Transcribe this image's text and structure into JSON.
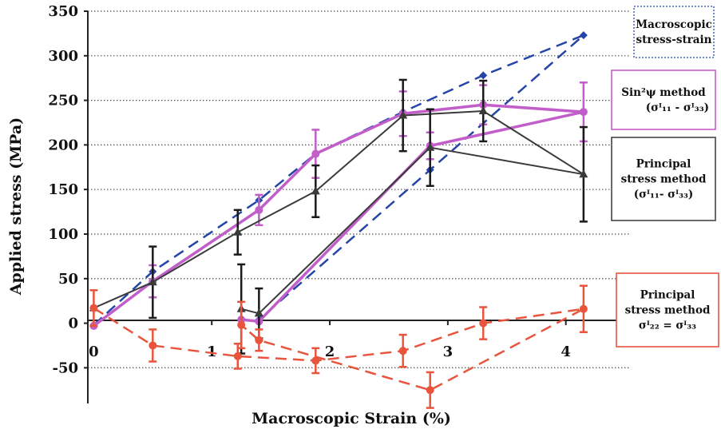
{
  "chart_data": {
    "type": "line",
    "xlabel": "Macroscopic Strain (%)",
    "ylabel": "Applied stress  (MPa)",
    "xlim": [
      -0.05,
      4.55
    ],
    "ylim": [
      -90,
      350
    ],
    "x_ticks": [
      {
        "value": 0,
        "label": "0"
      },
      {
        "value": 1,
        "label": "1"
      },
      {
        "value": 2,
        "label": "2"
      },
      {
        "value": 3,
        "label": "3"
      },
      {
        "value": 4,
        "label": "4"
      }
    ],
    "y_ticks": [
      {
        "value": 350,
        "label": "350"
      },
      {
        "value": 300,
        "label": "300"
      },
      {
        "value": 250,
        "label": "250"
      },
      {
        "value": 200,
        "label": "200"
      },
      {
        "value": 150,
        "label": "150"
      },
      {
        "value": 100,
        "label": "100"
      },
      {
        "value": 50,
        "label": "50"
      },
      {
        "value": 0,
        "label": "0"
      },
      {
        "value": -50,
        "label": "-50"
      }
    ],
    "grid": {
      "horizontal": true,
      "style": "dotted"
    },
    "series": [
      {
        "id": "macro",
        "color": "#2546a8",
        "dash": "dashed",
        "marker": "diamond",
        "points": [
          {
            "x": 0.0,
            "y": -2
          },
          {
            "x": 0.5,
            "y": 58
          },
          {
            "x": 1.4,
            "y": 138
          },
          {
            "x": 1.88,
            "y": 190
          },
          {
            "x": 2.62,
            "y": 237
          },
          {
            "x": 3.3,
            "y": 278
          },
          {
            "x": 4.15,
            "y": 323
          },
          {
            "x": 2.85,
            "y": 172
          },
          {
            "x": 1.4,
            "y": 4
          }
        ]
      },
      {
        "id": "sin2psi",
        "color": "#c25ec9",
        "dash": "solid",
        "marker": "circle",
        "points": [
          {
            "x": 0.0,
            "y": -3,
            "err": 0
          },
          {
            "x": 0.5,
            "y": 47,
            "err": 18
          },
          {
            "x": 1.4,
            "y": 127,
            "err": 17
          },
          {
            "x": 1.88,
            "y": 190,
            "err": 27
          },
          {
            "x": 2.62,
            "y": 235,
            "err": 25
          },
          {
            "x": 3.3,
            "y": 245,
            "err": 22
          },
          {
            "x": 4.15,
            "y": 237,
            "err": 33
          },
          {
            "x": 2.85,
            "y": 199,
            "err": 15
          },
          {
            "x": 1.4,
            "y": 2,
            "err": 0
          },
          {
            "x": 1.25,
            "y": 4,
            "err": 0
          }
        ]
      },
      {
        "id": "principal_11_33",
        "color": "#3a3a3a",
        "dash": "solid",
        "marker": "triangle",
        "points": [
          {
            "x": 0.0,
            "y": 17,
            "err": 0
          },
          {
            "x": 0.5,
            "y": 46,
            "err": 40
          },
          {
            "x": 1.22,
            "y": 102,
            "err": 25
          },
          {
            "x": 1.88,
            "y": 148,
            "err": 29
          },
          {
            "x": 2.62,
            "y": 233,
            "err": 40
          },
          {
            "x": 3.3,
            "y": 238,
            "err": 34
          },
          {
            "x": 4.15,
            "y": 167,
            "err": 53
          },
          {
            "x": 2.85,
            "y": 197,
            "err": 43
          },
          {
            "x": 1.4,
            "y": 11,
            "err": 28
          },
          {
            "x": 1.25,
            "y": 16,
            "err": 50
          },
          {
            "x": 1.4,
            "y": 11,
            "err": 0
          }
        ]
      },
      {
        "id": "principal_22_33",
        "color": "#e8543c",
        "dash": "dashed",
        "marker": "circle",
        "points": [
          {
            "x": 0.0,
            "y": 17,
            "err": 20
          },
          {
            "x": 0.5,
            "y": -25,
            "err": 18
          },
          {
            "x": 1.22,
            "y": -37,
            "err": 14
          },
          {
            "x": 1.88,
            "y": -42,
            "err": 14
          },
          {
            "x": 2.62,
            "y": -31,
            "err": 18
          },
          {
            "x": 3.3,
            "y": 0,
            "err": 18
          },
          {
            "x": 4.15,
            "y": 16,
            "err": 26
          },
          {
            "x": 2.85,
            "y": -75,
            "err": 20
          },
          {
            "x": 1.4,
            "y": -19,
            "err": 12
          },
          {
            "x": 1.25,
            "y": -2,
            "err": 26
          },
          {
            "x": 1.4,
            "y": -19,
            "err": 0
          }
        ]
      }
    ],
    "legend": [
      {
        "id": "macro",
        "color": "#2546a8",
        "border": "dotted",
        "lines": [
          "Macroscopic",
          "stress-strain"
        ]
      },
      {
        "id": "sin2psi",
        "color": "#c25ec9",
        "border": "solid",
        "lines": [
          "Sin²ψ method",
          "(σᴵ₁₁ - σᴵ₃₃)"
        ]
      },
      {
        "id": "principal_11_33",
        "color": "#444444",
        "border": "solid",
        "lines": [
          "Principal",
          "stress method",
          "(σᴵ₁₁- σᴵ₃₃)"
        ]
      },
      {
        "id": "principal_22_33",
        "color": "#e8543c",
        "border": "solid",
        "lines": [
          "Principal",
          "stress method",
          "σᴵ₂₂ = σᴵ₃₃"
        ]
      }
    ]
  }
}
